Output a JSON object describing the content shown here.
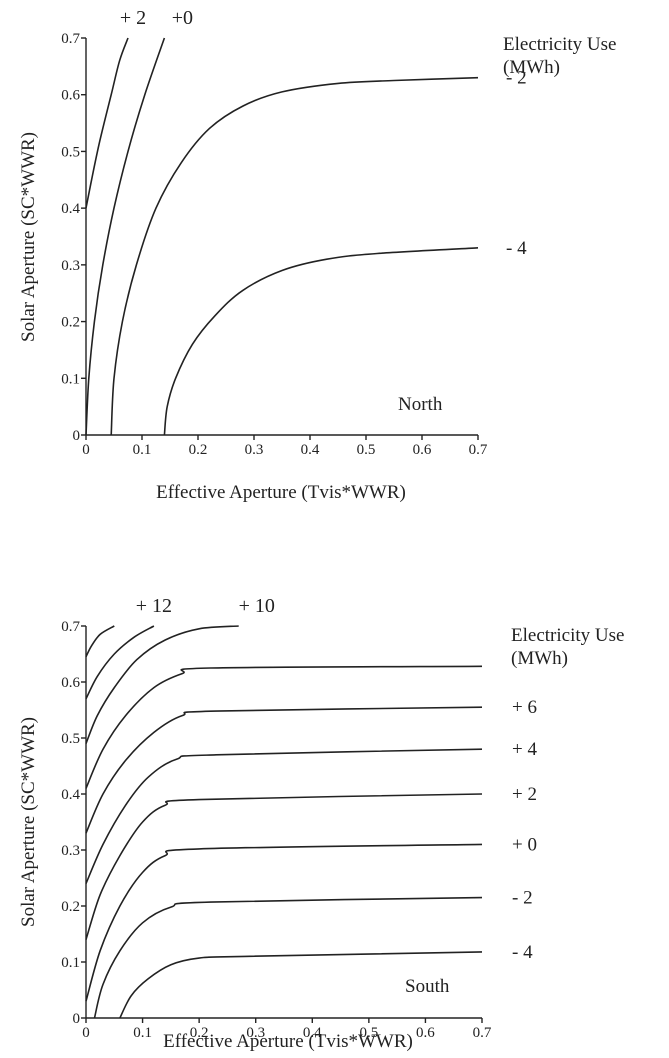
{
  "chart_data": [
    {
      "type": "line",
      "panel": "North",
      "xlabel": "Effective Aperture (Tvis*WWR)",
      "ylabel": "Solar Aperture (SC*WWR)",
      "xlim": [
        0,
        0.7
      ],
      "ylim": [
        0,
        0.7
      ],
      "x_ticks": [
        "0",
        "0.1",
        "0.2",
        "0.3",
        "0.4",
        "0.5",
        "0.6",
        "0.7"
      ],
      "y_ticks": [
        "0",
        "0.1",
        "0.2",
        "0.3",
        "0.4",
        "0.5",
        "0.6",
        "0.7"
      ],
      "legend_title": [
        "Electricity Use",
        "(MWh)"
      ],
      "panel_label": "North",
      "series": [
        {
          "name": "+ 2",
          "label_position": "top",
          "points": [
            [
              0,
              0.4
            ],
            [
              0.01,
              0.45
            ],
            [
              0.025,
              0.52
            ],
            [
              0.045,
              0.6
            ],
            [
              0.06,
              0.66
            ],
            [
              0.075,
              0.7
            ]
          ]
        },
        {
          "name": "+0",
          "label_position": "top",
          "points": [
            [
              0,
              0.0
            ],
            [
              0.005,
              0.1
            ],
            [
              0.015,
              0.2
            ],
            [
              0.03,
              0.3
            ],
            [
              0.05,
              0.4
            ],
            [
              0.075,
              0.5
            ],
            [
              0.105,
              0.6
            ],
            [
              0.14,
              0.7
            ]
          ]
        },
        {
          "name": "- 2",
          "label_position": "right",
          "points": [
            [
              0.045,
              0.0
            ],
            [
              0.05,
              0.1
            ],
            [
              0.065,
              0.2
            ],
            [
              0.09,
              0.3
            ],
            [
              0.125,
              0.4
            ],
            [
              0.17,
              0.48
            ],
            [
              0.22,
              0.54
            ],
            [
              0.28,
              0.58
            ],
            [
              0.35,
              0.605
            ],
            [
              0.45,
              0.62
            ],
            [
              0.55,
              0.625
            ],
            [
              0.7,
              0.63
            ]
          ]
        },
        {
          "name": "- 4",
          "label_position": "right",
          "points": [
            [
              0.14,
              0.0
            ],
            [
              0.145,
              0.05
            ],
            [
              0.16,
              0.1
            ],
            [
              0.19,
              0.16
            ],
            [
              0.23,
              0.21
            ],
            [
              0.28,
              0.255
            ],
            [
              0.35,
              0.29
            ],
            [
              0.43,
              0.31
            ],
            [
              0.52,
              0.32
            ],
            [
              0.7,
              0.33
            ]
          ]
        }
      ]
    },
    {
      "type": "line",
      "panel": "South",
      "xlabel": "Effective Aperture (Tvis*WWR)",
      "ylabel": "Solar Aperture (SC*WWR)",
      "xlim": [
        0,
        0.7
      ],
      "ylim": [
        0,
        0.7
      ],
      "x_ticks": [
        "0",
        "0.1",
        "0.2",
        "0.3",
        "0.4",
        "0.5",
        "0.6",
        "0.7"
      ],
      "y_ticks": [
        "0",
        "0.1",
        "0.2",
        "0.3",
        "0.4",
        "0.5",
        "0.6",
        "0.7"
      ],
      "legend_title": [
        "Electricity Use",
        "(MWh)"
      ],
      "panel_label": "South",
      "series": [
        {
          "name": "",
          "label_position": "none",
          "points": [
            [
              0,
              0.645
            ],
            [
              0.01,
              0.665
            ],
            [
              0.025,
              0.685
            ],
            [
              0.05,
              0.7
            ]
          ]
        },
        {
          "name": "+ 12",
          "label_position": "top",
          "points": [
            [
              0,
              0.57
            ],
            [
              0.02,
              0.61
            ],
            [
              0.05,
              0.65
            ],
            [
              0.085,
              0.68
            ],
            [
              0.12,
              0.7
            ]
          ]
        },
        {
          "name": "+ 10",
          "label_position": "top",
          "points": [
            [
              0,
              0.49
            ],
            [
              0.02,
              0.54
            ],
            [
              0.05,
              0.59
            ],
            [
              0.09,
              0.64
            ],
            [
              0.14,
              0.675
            ],
            [
              0.2,
              0.695
            ],
            [
              0.27,
              0.7
            ]
          ]
        },
        {
          "name": "",
          "label_position": "none",
          "points": [
            [
              0,
              0.41
            ],
            [
              0.03,
              0.48
            ],
            [
              0.07,
              0.54
            ],
            [
              0.12,
              0.59
            ],
            [
              0.17,
              0.615
            ],
            [
              0.22,
              0.625
            ],
            [
              0.7,
              0.628
            ]
          ]
        },
        {
          "name": "+ 6",
          "label_position": "right",
          "points": [
            [
              0,
              0.33
            ],
            [
              0.03,
              0.4
            ],
            [
              0.07,
              0.46
            ],
            [
              0.12,
              0.51
            ],
            [
              0.17,
              0.54
            ],
            [
              0.23,
              0.548
            ],
            [
              0.7,
              0.555
            ]
          ]
        },
        {
          "name": "+ 4",
          "label_position": "right",
          "points": [
            [
              0,
              0.24
            ],
            [
              0.03,
              0.31
            ],
            [
              0.07,
              0.38
            ],
            [
              0.11,
              0.43
            ],
            [
              0.16,
              0.462
            ],
            [
              0.23,
              0.47
            ],
            [
              0.7,
              0.48
            ]
          ]
        },
        {
          "name": "+ 2",
          "label_position": "right",
          "points": [
            [
              0,
              0.14
            ],
            [
              0.025,
              0.22
            ],
            [
              0.06,
              0.29
            ],
            [
              0.1,
              0.35
            ],
            [
              0.14,
              0.38
            ],
            [
              0.2,
              0.39
            ],
            [
              0.7,
              0.4
            ]
          ]
        },
        {
          "name": "+ 0",
          "label_position": "right",
          "points": [
            [
              0,
              0.03
            ],
            [
              0.025,
              0.12
            ],
            [
              0.06,
              0.2
            ],
            [
              0.1,
              0.26
            ],
            [
              0.14,
              0.29
            ],
            [
              0.2,
              0.302
            ],
            [
              0.7,
              0.31
            ]
          ]
        },
        {
          "name": "- 2",
          "label_position": "right",
          "points": [
            [
              0.015,
              0.0
            ],
            [
              0.03,
              0.06
            ],
            [
              0.06,
              0.12
            ],
            [
              0.1,
              0.17
            ],
            [
              0.15,
              0.198
            ],
            [
              0.22,
              0.207
            ],
            [
              0.7,
              0.215
            ]
          ]
        },
        {
          "name": "- 4",
          "label_position": "right",
          "points": [
            [
              0.06,
              0.0
            ],
            [
              0.08,
              0.04
            ],
            [
              0.11,
              0.07
            ],
            [
              0.15,
              0.095
            ],
            [
              0.2,
              0.107
            ],
            [
              0.28,
              0.11
            ],
            [
              0.7,
              0.118
            ]
          ]
        }
      ]
    }
  ]
}
